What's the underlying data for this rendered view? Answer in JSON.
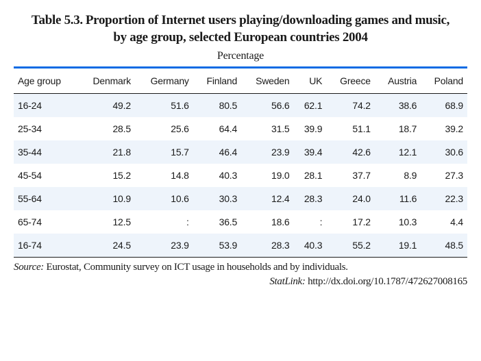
{
  "title": {
    "table_ref": "Table 5.3.",
    "line1": "Proportion of Internet users playing/downloading games and music,",
    "line2": "by age group, selected European countries 2004",
    "subtitle": "Percentage"
  },
  "table": {
    "row_label_header": "Age group",
    "columns": [
      "Denmark",
      "Germany",
      "Finland",
      "Sweden",
      "UK",
      "Greece",
      "Austria",
      "Poland"
    ],
    "rows": [
      {
        "label": "16-24",
        "cells": [
          "49.2",
          "51.6",
          "80.5",
          "56.6",
          "62.1",
          "74.2",
          "38.6",
          "68.9"
        ]
      },
      {
        "label": "25-34",
        "cells": [
          "28.5",
          "25.6",
          "64.4",
          "31.5",
          "39.9",
          "51.1",
          "18.7",
          "39.2"
        ]
      },
      {
        "label": "35-44",
        "cells": [
          "21.8",
          "15.7",
          "46.4",
          "23.9",
          "39.4",
          "42.6",
          "12.1",
          "30.6"
        ]
      },
      {
        "label": "45-54",
        "cells": [
          "15.2",
          "14.8",
          "40.3",
          "19.0",
          "28.1",
          "37.7",
          "8.9",
          "27.3"
        ]
      },
      {
        "label": "55-64",
        "cells": [
          "10.9",
          "10.6",
          "30.3",
          "12.4",
          "28.3",
          "24.0",
          "11.6",
          "22.3"
        ]
      },
      {
        "label": "65-74",
        "cells": [
          "12.5",
          ":",
          "36.5",
          "18.6",
          ":",
          "17.2",
          "10.3",
          "4.4"
        ]
      },
      {
        "label": "16-74",
        "cells": [
          "24.5",
          "23.9",
          "53.9",
          "28.3",
          "40.3",
          "55.2",
          "19.1",
          "48.5"
        ]
      }
    ]
  },
  "source": {
    "label": "Source:",
    "text": "Eurostat, Community survey on ICT usage in households and by individuals."
  },
  "statlink": {
    "label": "StatLink:",
    "url_text": "http://dx.doi.org/10.1787/472627008165"
  },
  "style": {
    "rule_color": "#0a6be4",
    "under_rule_color": "#1a1a1a",
    "row_alt_bg": "#eef4fb",
    "title_fontsize_pt": 14,
    "subtitle_fontsize_pt": 12,
    "body_fontsize_pt": 10
  }
}
